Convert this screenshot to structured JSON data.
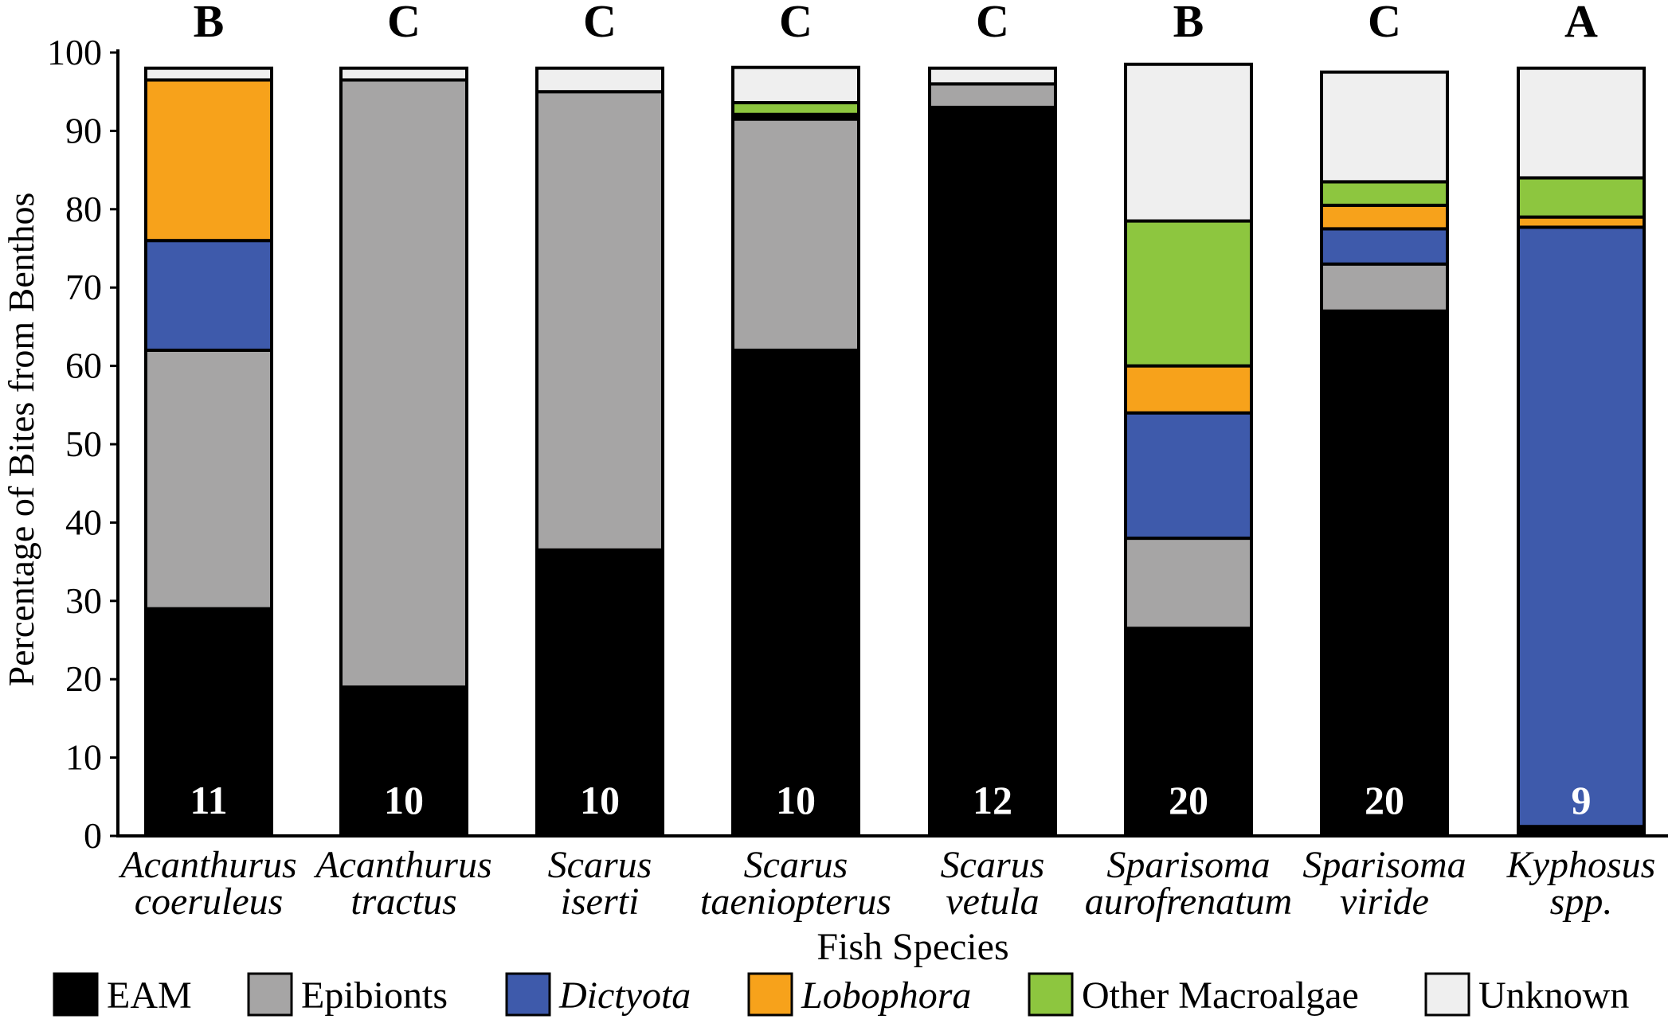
{
  "chart_data": {
    "type": "bar",
    "stacked": true,
    "ylabel": "Percentage of Bites from Benthos",
    "xlabel": "Fish Species",
    "ylim": [
      0,
      100
    ],
    "yticks": [
      0,
      10,
      20,
      30,
      40,
      50,
      60,
      70,
      80,
      90,
      100
    ],
    "categories": [
      [
        "Acanthurus",
        "coeruleus"
      ],
      [
        "Acanthurus",
        "tractus"
      ],
      [
        "Scarus",
        "iserti"
      ],
      [
        "Scarus",
        "taeniopterus"
      ],
      [
        "Scarus",
        "vetula"
      ],
      [
        "Sparisoma",
        "aurofrenatum"
      ],
      [
        "Sparisoma",
        "viride"
      ],
      [
        "Kyphosus",
        "spp."
      ]
    ],
    "significance_letters": [
      "B",
      "C",
      "C",
      "C",
      "C",
      "B",
      "C",
      "A"
    ],
    "sample_sizes": [
      "11",
      "10",
      "10",
      "10",
      "12",
      "20",
      "20",
      "9"
    ],
    "series": [
      {
        "name": "EAM",
        "italic": false,
        "color": "#000000",
        "values": [
          29.0,
          19.0,
          36.5,
          62.0,
          93.0,
          26.5,
          67.0,
          1.2
        ]
      },
      {
        "name": "Epibionts",
        "italic": false,
        "color": "#a6a5a5",
        "values": [
          33.0,
          77.5,
          58.5,
          29.5,
          3.0,
          11.5,
          6.0,
          0.0
        ]
      },
      {
        "name": "Dictyota",
        "italic": true,
        "color": "#3e5aab",
        "values": [
          14.0,
          0.0,
          0.0,
          0.3,
          0.0,
          16.0,
          4.5,
          76.5
        ]
      },
      {
        "name": "Lobophora",
        "italic": true,
        "color": "#f7a21b",
        "values": [
          20.5,
          0.0,
          0.0,
          0.3,
          0.0,
          6.0,
          3.0,
          1.3
        ]
      },
      {
        "name": "Other Macroalgae",
        "italic": false,
        "color": "#8dc63f",
        "values": [
          0.0,
          0.0,
          0.0,
          1.5,
          0.0,
          18.5,
          3.0,
          5.0
        ]
      },
      {
        "name": "Unknown",
        "italic": false,
        "color": "#efefef",
        "values": [
          1.5,
          1.5,
          3.0,
          4.5,
          2.0,
          20.0,
          14.0,
          14.0
        ]
      }
    ],
    "legend_position": "bottom"
  }
}
